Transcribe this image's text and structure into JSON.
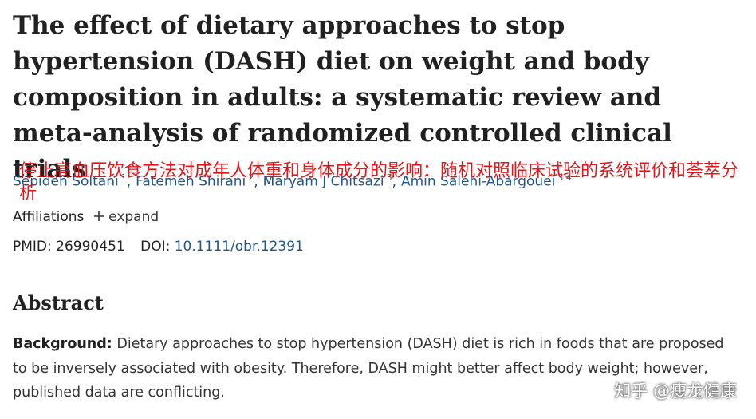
{
  "article": {
    "title": "The effect of dietary approaches to stop hypertension (DASH) diet on weight and body composition in adults: a systematic review and meta-analysis of randomized controlled clinical trials",
    "translation": "停止高血压饮食方法对成年人体重和身体成分的影响：随机对照临床试验的系统评价和荟萃分析",
    "authors": [
      {
        "name": "Sepideh Soltani",
        "refs": "1"
      },
      {
        "name": "Fatemeh Shirani",
        "refs": "2"
      },
      {
        "name": "Maryam J Chitsazi",
        "refs": "3"
      },
      {
        "name": "Amin Salehi-Abargouei",
        "refs": "3 4"
      }
    ],
    "author_separator": ",",
    "affiliations": "Affiliations",
    "expand": "expand",
    "pmid_label": "PMID:",
    "pmid": "26990451",
    "doi_label": "DOI:",
    "doi": "10.1111/obr.12391",
    "abstract_heading": "Abstract",
    "background_label": "Background:",
    "background_text": "Dietary approaches to stop hypertension (DASH) diet is rich in foods that are proposed to be inversely associated with obesity. Therefore, DASH might better affect body weight; however, published data are conflicting."
  },
  "watermark": "知乎 @瘦龙健康"
}
